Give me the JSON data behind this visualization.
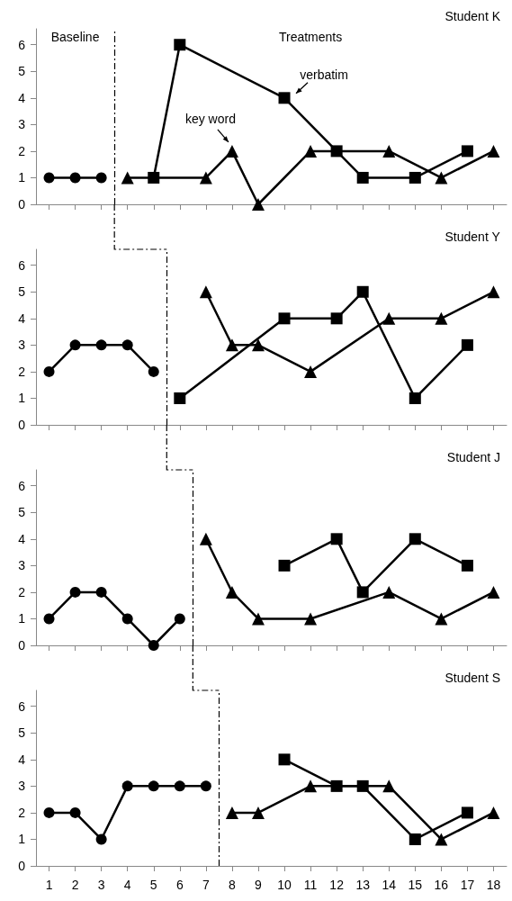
{
  "chart_data": [
    {
      "type": "line",
      "title": "Student K",
      "x": [
        1,
        2,
        3,
        4,
        5,
        6,
        7,
        8,
        9,
        10,
        11,
        12,
        13,
        14,
        15,
        16,
        17,
        18
      ],
      "xlim": [
        0.5,
        18.5
      ],
      "xticks": [
        1,
        2,
        3,
        4,
        5,
        6,
        7,
        8,
        9,
        10,
        11,
        12,
        13,
        14,
        15,
        16,
        17,
        18
      ],
      "ylim": [
        0,
        6.6
      ],
      "yticks": [
        0,
        1,
        2,
        3,
        4,
        5,
        6
      ],
      "tick_labels": "y",
      "grid": false,
      "series": [
        {
          "color": "#000000",
          "marker": "circle",
          "values": [
            1,
            1,
            1,
            null,
            null,
            null,
            null,
            null,
            null,
            null,
            null,
            null,
            null,
            null,
            null,
            null,
            null,
            null
          ]
        },
        {
          "color": "#000000",
          "marker": "triangle",
          "values": [
            null,
            null,
            null,
            1,
            null,
            null,
            1,
            2,
            0,
            null,
            2,
            null,
            null,
            2,
            null,
            1,
            null,
            2
          ]
        },
        {
          "color": "#000000",
          "marker": "square",
          "values": [
            null,
            null,
            null,
            null,
            1,
            6,
            null,
            null,
            null,
            4,
            null,
            2,
            1,
            null,
            1,
            null,
            2,
            null
          ]
        }
      ],
      "ref_lines": [
        {
          "axis": "x",
          "value": 3.5
        }
      ],
      "annotations": [
        "Baseline",
        "Treatments",
        {
          "text": "key word",
          "x": 8,
          "y": 2
        },
        {
          "text": "verbatim",
          "x": 10,
          "y": 4
        }
      ]
    },
    {
      "type": "line",
      "title": "Student Y",
      "x": [
        1,
        2,
        3,
        4,
        5,
        6,
        7,
        8,
        9,
        10,
        11,
        12,
        13,
        14,
        15,
        16,
        17,
        18
      ],
      "xlim": [
        0.5,
        18.5
      ],
      "xticks": [
        1,
        2,
        3,
        4,
        5,
        6,
        7,
        8,
        9,
        10,
        11,
        12,
        13,
        14,
        15,
        16,
        17,
        18
      ],
      "ylim": [
        0,
        6.6
      ],
      "yticks": [
        0,
        1,
        2,
        3,
        4,
        5,
        6
      ],
      "tick_labels": "y",
      "grid": false,
      "series": [
        {
          "color": "#000000",
          "marker": "circle",
          "values": [
            2,
            3,
            3,
            3,
            2,
            null,
            null,
            null,
            null,
            null,
            null,
            null,
            null,
            null,
            null,
            null,
            null,
            null
          ]
        },
        {
          "color": "#000000",
          "marker": "triangle",
          "values": [
            null,
            null,
            null,
            null,
            null,
            null,
            5,
            3,
            3,
            null,
            2,
            null,
            null,
            4,
            null,
            4,
            null,
            5
          ]
        },
        {
          "color": "#000000",
          "marker": "square",
          "values": [
            null,
            null,
            null,
            null,
            null,
            1,
            null,
            null,
            null,
            4,
            null,
            4,
            5,
            null,
            1,
            null,
            3,
            null
          ]
        }
      ],
      "ref_lines": [
        {
          "axis": "x",
          "value": 5.5
        }
      ]
    },
    {
      "type": "line",
      "title": "Student J",
      "x": [
        1,
        2,
        3,
        4,
        5,
        6,
        7,
        8,
        9,
        10,
        11,
        12,
        13,
        14,
        15,
        16,
        17,
        18
      ],
      "xlim": [
        0.5,
        18.5
      ],
      "xticks": [
        1,
        2,
        3,
        4,
        5,
        6,
        7,
        8,
        9,
        10,
        11,
        12,
        13,
        14,
        15,
        16,
        17,
        18
      ],
      "ylim": [
        0,
        6.6
      ],
      "yticks": [
        0,
        1,
        2,
        3,
        4,
        5,
        6
      ],
      "tick_labels": "y",
      "grid": false,
      "series": [
        {
          "color": "#000000",
          "marker": "circle",
          "values": [
            1,
            2,
            2,
            1,
            0,
            1,
            null,
            null,
            null,
            null,
            null,
            null,
            null,
            null,
            null,
            null,
            null,
            null
          ]
        },
        {
          "color": "#000000",
          "marker": "triangle",
          "values": [
            null,
            null,
            null,
            null,
            null,
            null,
            4,
            2,
            1,
            null,
            1,
            null,
            null,
            2,
            null,
            1,
            null,
            2
          ]
        },
        {
          "color": "#000000",
          "marker": "square",
          "values": [
            null,
            null,
            null,
            null,
            null,
            null,
            null,
            null,
            null,
            3,
            null,
            4,
            2,
            null,
            4,
            null,
            3,
            null
          ]
        }
      ],
      "ref_lines": [
        {
          "axis": "x",
          "value": 6.5
        }
      ]
    },
    {
      "type": "line",
      "title": "Student S",
      "x": [
        1,
        2,
        3,
        4,
        5,
        6,
        7,
        8,
        9,
        10,
        11,
        12,
        13,
        14,
        15,
        16,
        17,
        18
      ],
      "xlim": [
        0.5,
        18.5
      ],
      "xticks": [
        1,
        2,
        3,
        4,
        5,
        6,
        7,
        8,
        9,
        10,
        11,
        12,
        13,
        14,
        15,
        16,
        17,
        18
      ],
      "ylim": [
        0,
        6.6
      ],
      "yticks": [
        0,
        1,
        2,
        3,
        4,
        5,
        6
      ],
      "grid": false,
      "series": [
        {
          "color": "#000000",
          "marker": "circle",
          "values": [
            2,
            2,
            1,
            3,
            3,
            3,
            3,
            null,
            null,
            null,
            null,
            null,
            null,
            null,
            null,
            null,
            null,
            null
          ]
        },
        {
          "color": "#000000",
          "marker": "triangle",
          "values": [
            null,
            null,
            null,
            null,
            null,
            null,
            null,
            2,
            2,
            null,
            3,
            null,
            null,
            3,
            null,
            1,
            null,
            2
          ]
        },
        {
          "color": "#000000",
          "marker": "square",
          "values": [
            null,
            null,
            null,
            null,
            null,
            null,
            null,
            null,
            null,
            4,
            null,
            3,
            3,
            null,
            1,
            null,
            2,
            null
          ]
        }
      ],
      "ref_lines": [
        {
          "axis": "x",
          "value": 7.5
        }
      ]
    }
  ]
}
